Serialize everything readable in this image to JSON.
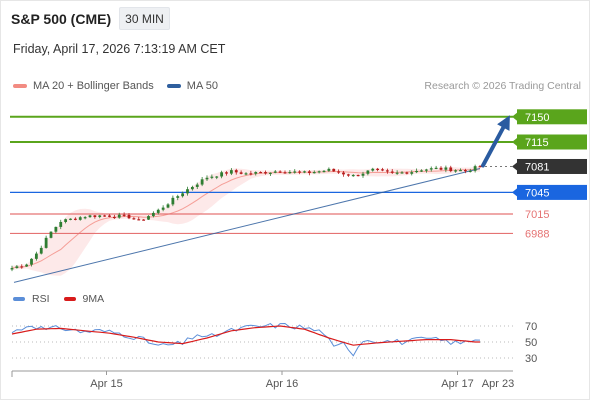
{
  "header": {
    "title": "S&P 500 (CME)",
    "timeframe": "30 MIN",
    "datetime": "Friday, April 17, 2026 7:13:19 AM CET"
  },
  "legend": {
    "ma20_label": "MA 20 + Bollinger Bands",
    "ma50_label": "MA 50",
    "credit": "Research © 2026 Trading Central"
  },
  "rsi_legend": {
    "rsi_label": "RSI",
    "ma_label": "9MA"
  },
  "colors": {
    "ma20": "#f28b82",
    "ma50": "#2f5f9e",
    "bands_fill": "#fde3e3",
    "candle_up": "#2e7d32",
    "candle_down": "#b71c1c",
    "resistance": "#5aa51c",
    "pivot": "#1a66e0",
    "support": "#e57373",
    "current": "#333333",
    "arrow": "#2a5ba0",
    "rsi": "#5b8ed8",
    "rsi_ma": "#d81b1b"
  },
  "chart_data": [
    {
      "type": "candlestick",
      "title": "S&P 500 (CME)",
      "timeframe": "30 MIN",
      "ylim": [
        6940,
        7165
      ],
      "x_tick_labels": [
        "Apr 15",
        "Apr 16",
        "Apr 17",
        "Apr 23"
      ],
      "close_path": {
        "x": [
          0,
          3,
          5,
          8,
          10,
          13,
          15,
          19,
          24,
          26,
          30,
          35,
          40,
          45,
          48,
          52,
          55,
          60,
          65,
          70,
          74,
          78,
          82,
          84,
          87,
          90,
          93,
          96
        ],
        "y": [
          6940,
          6946,
          6960,
          6990,
          7005,
          7009,
          7012,
          7013,
          7011,
          7005,
          7020,
          7045,
          7066,
          7074,
          7071,
          7073,
          7075,
          7072,
          7076,
          7068,
          7076,
          7071,
          7074,
          7077,
          7078,
          7077,
          7075,
          7081
        ]
      },
      "levels": [
        {
          "label": "7150",
          "value": 7150,
          "kind": "resistance"
        },
        {
          "label": "7115",
          "value": 7115,
          "kind": "resistance"
        },
        {
          "label": "7081",
          "value": 7081,
          "kind": "current"
        },
        {
          "label": "7045",
          "value": 7045,
          "kind": "pivot"
        },
        {
          "label": "7015",
          "value": 7015,
          "kind": "support"
        },
        {
          "label": "6988",
          "value": 6988,
          "kind": "support"
        }
      ],
      "forecast_arrow": {
        "from": 7081,
        "to": 7150
      },
      "ma50": {
        "from": 6920,
        "to": 7081
      },
      "series": [
        {
          "name": "MA 20 + Bollinger Bands"
        },
        {
          "name": "MA 50"
        }
      ]
    },
    {
      "type": "line",
      "ylim": [
        20,
        80
      ],
      "y_tick_labels": [
        "70",
        "50",
        "30"
      ],
      "y_ticks": [
        70,
        50,
        30
      ],
      "rsi": {
        "x": [
          0,
          4,
          7,
          10,
          14,
          18,
          22,
          26,
          30,
          35,
          38,
          40,
          44,
          48,
          52,
          56,
          60,
          64,
          66,
          68,
          70,
          72,
          75,
          80,
          85,
          88,
          92,
          95
        ],
        "y": [
          62,
          72,
          65,
          68,
          63,
          64,
          61,
          55,
          45,
          48,
          60,
          55,
          63,
          68,
          70,
          71,
          68,
          62,
          42,
          48,
          36,
          53,
          52,
          50,
          54,
          52,
          48,
          54
        ]
      },
      "rsi_ma": {
        "x": [
          0,
          5,
          10,
          15,
          20,
          25,
          30,
          35,
          40,
          45,
          50,
          55,
          60,
          65,
          70,
          75,
          80,
          85,
          90,
          95
        ],
        "y": [
          60,
          66,
          67,
          64,
          61,
          56,
          50,
          48,
          55,
          64,
          68,
          70,
          66,
          55,
          46,
          49,
          51,
          53,
          53,
          50
        ]
      },
      "series": [
        {
          "name": "RSI"
        },
        {
          "name": "9MA"
        }
      ]
    }
  ]
}
